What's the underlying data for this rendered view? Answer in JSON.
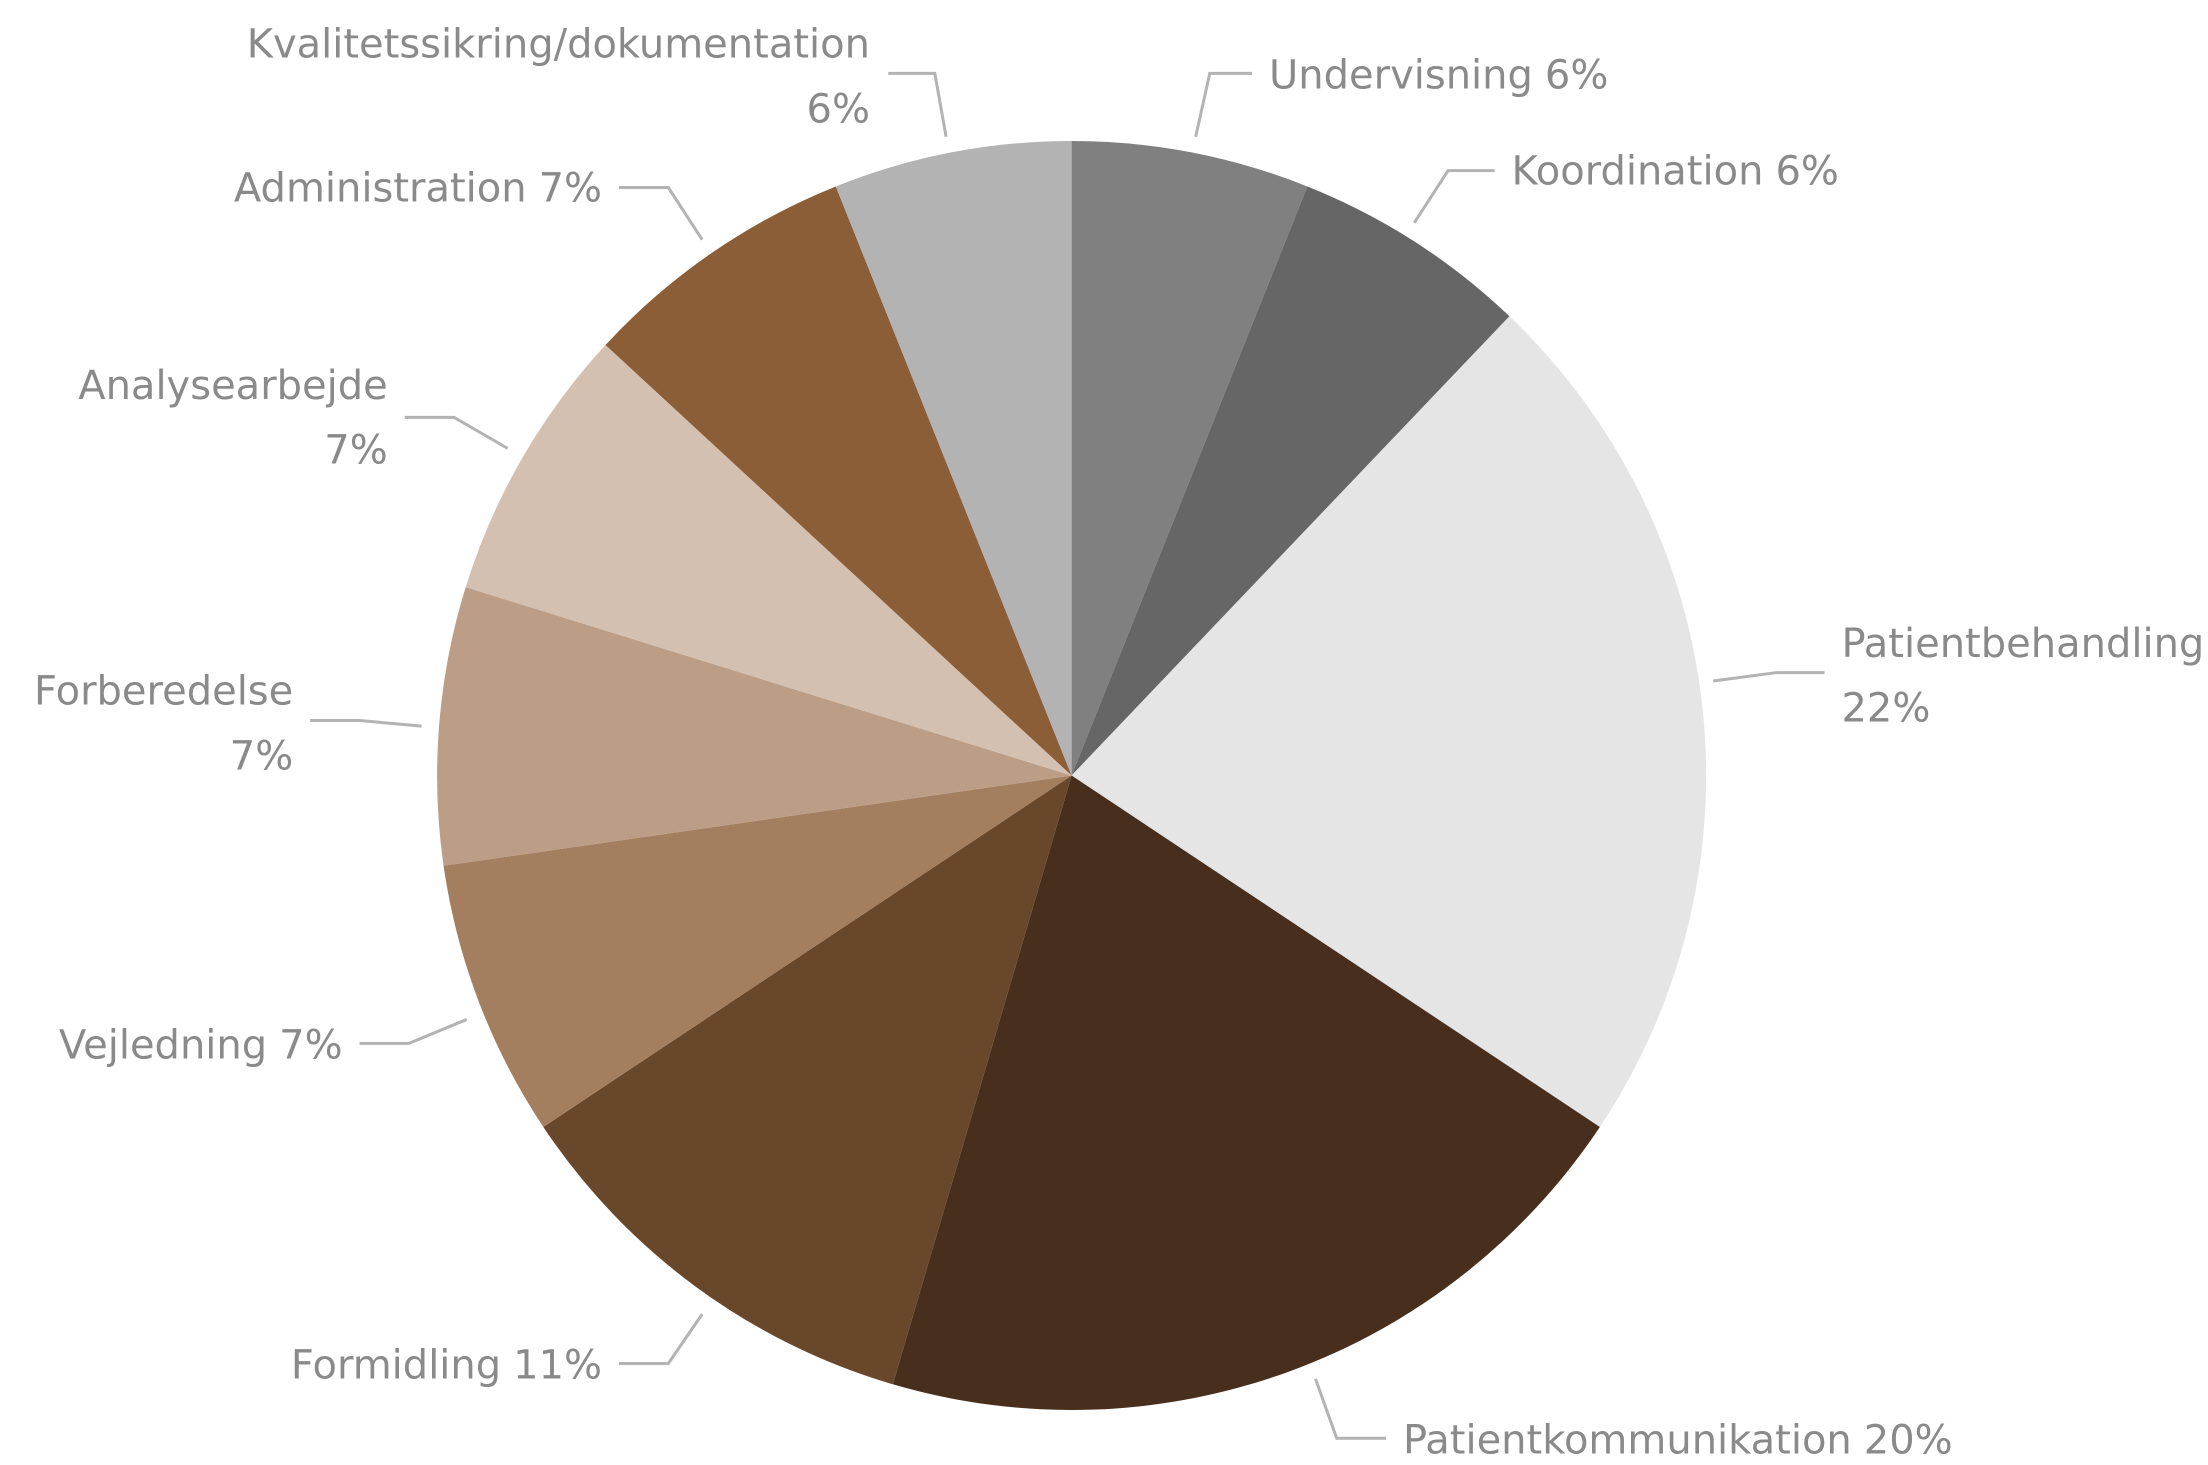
{
  "chart_data": {
    "type": "pie",
    "categories": [
      "Undervisning",
      "Koordination",
      "Patientbehandling",
      "Patientkommunikation",
      "Formidling",
      "Vejledning",
      "Forberedelse",
      "Analysearbejde",
      "Administration",
      "Kvalitetssikring/dokumentation"
    ],
    "values": [
      6,
      6,
      22,
      20,
      11,
      7,
      7,
      7,
      7,
      6
    ],
    "value_labels": [
      "6%",
      "6%",
      "22%",
      "20%",
      "11%",
      "7%",
      "7%",
      "7%",
      "7%",
      "6%"
    ],
    "colors": [
      "#808080",
      "#666666",
      "#e5e5e5",
      "#472e1d",
      "#69472a",
      "#a37f60",
      "#bc9d85",
      "#d3c0b0",
      "#8b5e37",
      "#b3b3b3"
    ]
  }
}
